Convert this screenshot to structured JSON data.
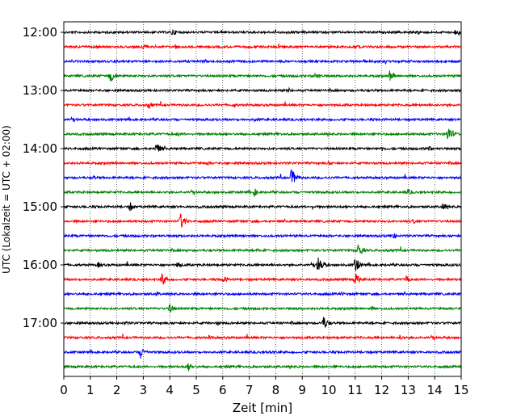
{
  "chart_data": {
    "type": "line",
    "title": "",
    "xlabel": "Zeit  [min]",
    "ylabel": "UTC (Lokalzeit = UTC + 02:00)",
    "xlim": [
      0,
      15
    ],
    "x_ticks": [
      "0",
      "1",
      "2",
      "3",
      "4",
      "5",
      "6",
      "7",
      "8",
      "9",
      "10",
      "11",
      "12",
      "13",
      "14",
      "15"
    ],
    "y_ticks": [
      "12:00",
      "13:00",
      "14:00",
      "15:00",
      "16:00",
      "17:00"
    ],
    "grid": "vertical dotted lines at every minute",
    "trace_interval_min": 15,
    "trace_colors": [
      "#000000",
      "#ff0000",
      "#0000ff",
      "#008000"
    ],
    "traces": [
      {
        "start": "12:00",
        "color": "#000000",
        "events": [
          [
            4.1,
            5
          ],
          [
            14.8,
            6
          ],
          [
            13.4,
            4
          ]
        ]
      },
      {
        "start": "12:15",
        "color": "#ff0000",
        "events": [
          [
            3.0,
            4
          ],
          [
            4.2,
            4
          ],
          [
            11.0,
            3
          ]
        ]
      },
      {
        "start": "12:30",
        "color": "#0000ff",
        "events": [
          [
            5.3,
            3
          ],
          [
            11.3,
            3
          ]
        ]
      },
      {
        "start": "12:45",
        "color": "#008000",
        "events": [
          [
            1.75,
            9
          ],
          [
            9.5,
            5
          ],
          [
            12.3,
            7
          ]
        ]
      },
      {
        "start": "13:00",
        "color": "#000000",
        "events": [
          [
            8.5,
            3
          ]
        ]
      },
      {
        "start": "13:15",
        "color": "#ff0000",
        "events": [
          [
            3.2,
            5
          ],
          [
            6.4,
            3
          ]
        ]
      },
      {
        "start": "13:30",
        "color": "#0000ff",
        "events": [
          [
            7.2,
            3
          ]
        ]
      },
      {
        "start": "13:45",
        "color": "#008000",
        "events": [
          [
            14.5,
            11
          ],
          [
            4.3,
            3
          ]
        ]
      },
      {
        "start": "14:00",
        "color": "#000000",
        "events": [
          [
            3.5,
            8
          ],
          [
            13.7,
            5
          ],
          [
            12.0,
            3
          ]
        ]
      },
      {
        "start": "14:15",
        "color": "#ff0000",
        "events": [
          [
            5.4,
            3
          ],
          [
            10.0,
            3
          ]
        ]
      },
      {
        "start": "14:30",
        "color": "#0000ff",
        "events": [
          [
            8.6,
            11
          ],
          [
            1.1,
            3
          ]
        ]
      },
      {
        "start": "14:45",
        "color": "#008000",
        "events": [
          [
            7.2,
            5
          ],
          [
            13.0,
            4
          ]
        ]
      },
      {
        "start": "15:00",
        "color": "#000000",
        "events": [
          [
            2.5,
            6
          ],
          [
            14.3,
            6
          ],
          [
            9.4,
            3
          ]
        ]
      },
      {
        "start": "15:15",
        "color": "#ff0000",
        "events": [
          [
            4.4,
            11
          ],
          [
            13.2,
            4
          ]
        ]
      },
      {
        "start": "15:30",
        "color": "#0000ff",
        "events": [
          [
            12.4,
            5
          ],
          [
            6.8,
            3
          ]
        ]
      },
      {
        "start": "15:45",
        "color": "#008000",
        "events": [
          [
            11.1,
            9
          ],
          [
            7.3,
            3
          ]
        ]
      },
      {
        "start": "16:00",
        "color": "#000000",
        "events": [
          [
            9.6,
            12
          ],
          [
            11.0,
            10
          ],
          [
            1.3,
            4
          ],
          [
            4.3,
            5
          ]
        ]
      },
      {
        "start": "16:15",
        "color": "#ff0000",
        "events": [
          [
            3.7,
            9
          ],
          [
            6.0,
            5
          ],
          [
            11.0,
            9
          ],
          [
            12.9,
            6
          ]
        ]
      },
      {
        "start": "16:30",
        "color": "#0000ff",
        "events": [
          [
            3.5,
            3
          ],
          [
            10.5,
            3
          ]
        ]
      },
      {
        "start": "16:45",
        "color": "#008000",
        "events": [
          [
            4.0,
            6
          ],
          [
            11.6,
            3
          ]
        ]
      },
      {
        "start": "17:00",
        "color": "#000000",
        "events": [
          [
            9.8,
            9
          ],
          [
            2.3,
            3
          ],
          [
            5.8,
            3
          ]
        ]
      },
      {
        "start": "17:15",
        "color": "#ff0000",
        "events": [
          [
            5.5,
            3
          ],
          [
            12.7,
            4
          ]
        ]
      },
      {
        "start": "17:30",
        "color": "#0000ff",
        "events": [
          [
            2.9,
            8
          ],
          [
            7.8,
            3
          ]
        ]
      },
      {
        "start": "17:45",
        "color": "#008000",
        "events": [
          [
            4.7,
            6
          ],
          [
            10.2,
            3
          ]
        ]
      }
    ]
  }
}
